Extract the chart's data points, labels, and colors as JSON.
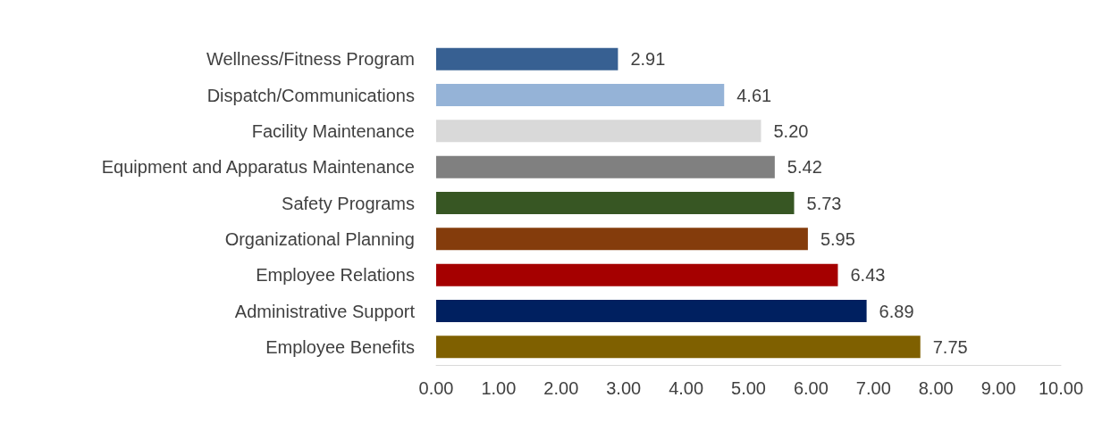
{
  "chart_data": {
    "type": "bar",
    "orientation": "horizontal",
    "categories": [
      "Wellness/Fitness Program",
      "Dispatch/Communications",
      "Facility Maintenance",
      "Equipment and Apparatus Maintenance",
      "Safety Programs",
      "Organizational Planning",
      "Employee Relations",
      "Administrative Support",
      "Employee Benefits"
    ],
    "values": [
      2.91,
      4.61,
      5.2,
      5.42,
      5.73,
      5.95,
      6.43,
      6.89,
      7.75
    ],
    "value_labels": [
      "2.91",
      "4.61",
      "5.20",
      "5.42",
      "5.73",
      "5.95",
      "6.43",
      "6.89",
      "7.75"
    ],
    "colors": [
      "#376092",
      "#95b3d7",
      "#d9d9d9",
      "#808080",
      "#375623",
      "#843c0c",
      "#a50000",
      "#002060",
      "#7f6000"
    ],
    "xlim": [
      0,
      10
    ],
    "xticks": [
      {
        "value": 0,
        "label": "0.00"
      },
      {
        "value": 1,
        "label": "1.00"
      },
      {
        "value": 2,
        "label": "2.00"
      },
      {
        "value": 3,
        "label": "3.00"
      },
      {
        "value": 4,
        "label": "4.00"
      },
      {
        "value": 5,
        "label": "5.00"
      },
      {
        "value": 6,
        "label": "6.00"
      },
      {
        "value": 7,
        "label": "7.00"
      },
      {
        "value": 8,
        "label": "8.00"
      },
      {
        "value": 9,
        "label": "9.00"
      },
      {
        "value": 10,
        "label": "10.00"
      }
    ],
    "grid": false
  }
}
